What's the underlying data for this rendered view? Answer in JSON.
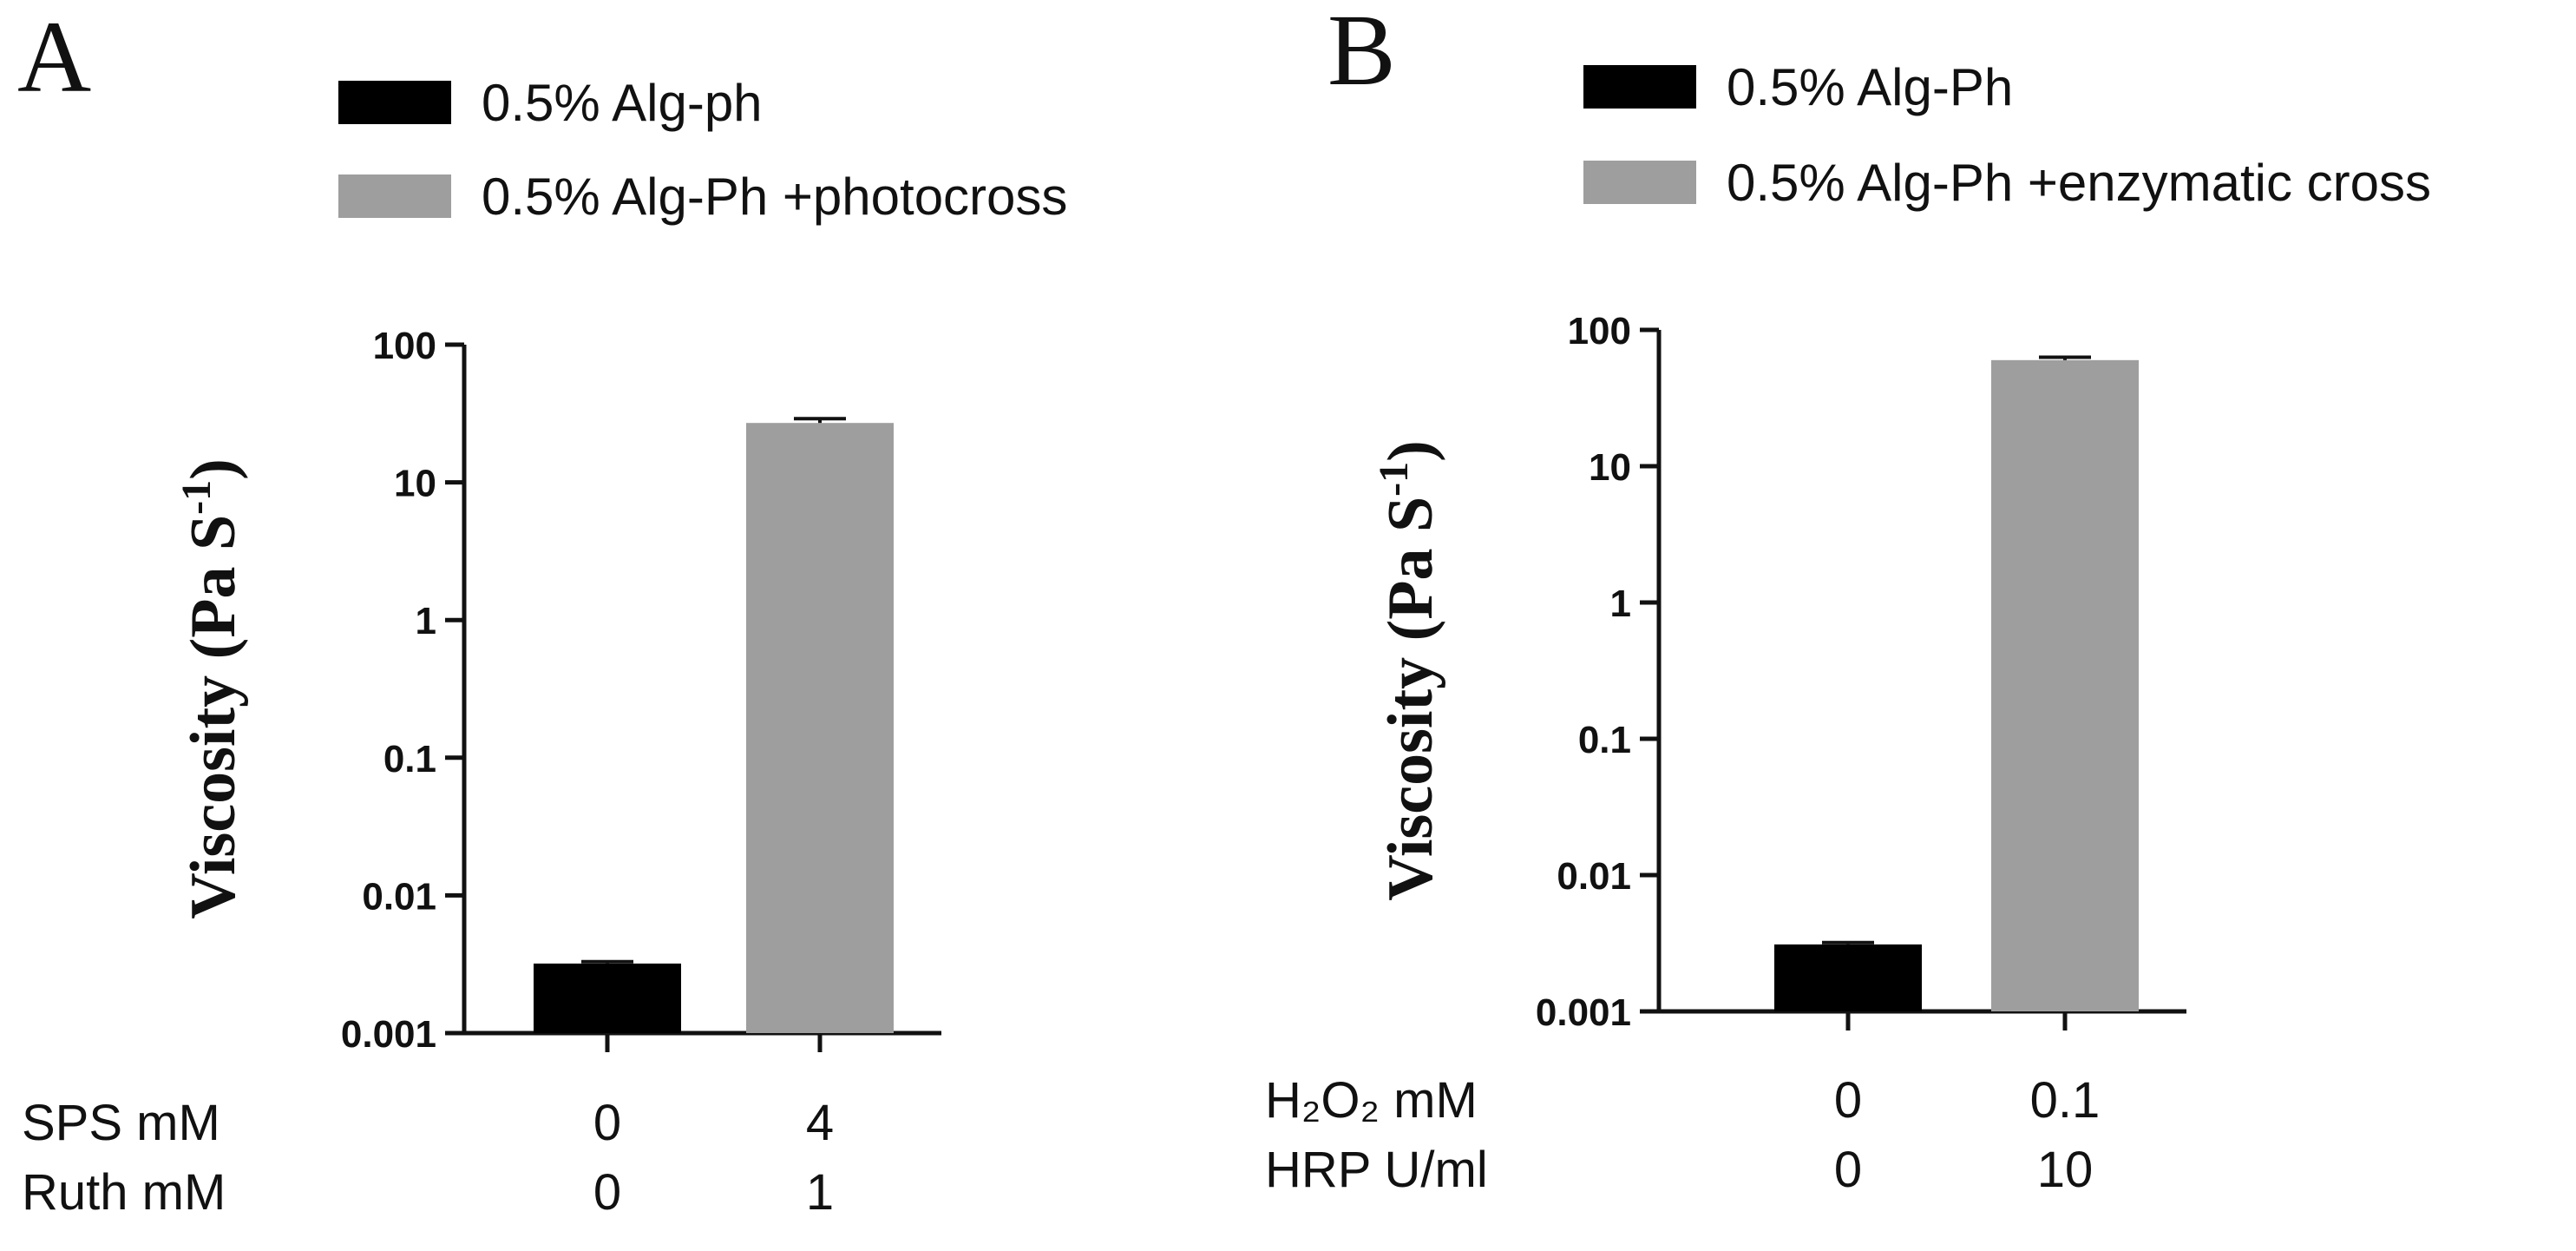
{
  "chart_data": [
    {
      "panel": "A",
      "type": "bar",
      "yscale": "log",
      "ylim": [
        0.001,
        100
      ],
      "yticks": [
        "100",
        "10",
        "1",
        "0.1",
        "0.01",
        "0.001"
      ],
      "ylabel_main": "Viscosity (Pa S",
      "ylabel_sup": "-1",
      "ylabel_close": ")",
      "legend": "top",
      "series": [
        {
          "name": "0.5% Alg-ph",
          "value": 0.0032,
          "error": 0.0001,
          "color": "#000000"
        },
        {
          "name": "0.5% Alg-Ph +photocross",
          "value": 27,
          "error": 2,
          "color": "#9e9e9e"
        }
      ],
      "conditions": [
        {
          "label": "SPS mM",
          "values": [
            "0",
            "4"
          ]
        },
        {
          "label": "Ruth mM",
          "values": [
            "0",
            "1"
          ]
        }
      ]
    },
    {
      "panel": "B",
      "type": "bar",
      "yscale": "log",
      "ylim": [
        0.001,
        100
      ],
      "yticks": [
        "100",
        "10",
        "1",
        "0.1",
        "0.01",
        "0.001"
      ],
      "ylabel_main": "Viscosity (Pa S",
      "ylabel_sup": "-1",
      "ylabel_close": ")",
      "legend": "top",
      "series": [
        {
          "name": "0.5% Alg-Ph",
          "value": 0.0031,
          "error": 0.0001,
          "color": "#000000"
        },
        {
          "name": "0.5% Alg-Ph +enzymatic cross",
          "value": 60,
          "error": 3,
          "color": "#9e9e9e"
        }
      ],
      "conditions": [
        {
          "label": "H₂O₂ mM",
          "values": [
            "0",
            "0.1"
          ]
        },
        {
          "label": "HRP U/ml",
          "values": [
            "0",
            "10"
          ]
        }
      ]
    }
  ]
}
